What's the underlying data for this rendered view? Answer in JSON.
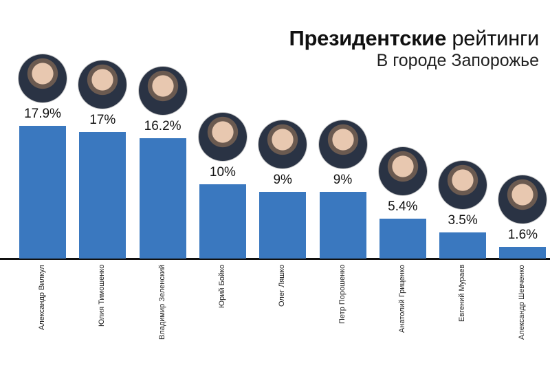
{
  "chart_data": {
    "type": "bar",
    "title_bold": "Президентские",
    "title_regular": "рейтинги",
    "subtitle": "В городе Запорожье",
    "categories": [
      "Александр Вилкул",
      "Юлия Тимошенко",
      "Владимир Зеленский",
      "Юрий Бойко",
      "Олег Ляшко",
      "Петр Порошенко",
      "Анатолий Гриценко",
      "Евгений Мураев",
      "Александр Шевченко"
    ],
    "values": [
      17.9,
      17,
      16.2,
      10,
      9,
      9,
      5.4,
      3.5,
      1.6
    ],
    "labels": [
      "17.9%",
      "17%",
      "16.2%",
      "10%",
      "9%",
      "9%",
      "5.4%",
      "3.5%",
      "1.6%"
    ],
    "unit": "%",
    "bar_color": "#3a78bf",
    "grid": false,
    "legend": "none"
  }
}
